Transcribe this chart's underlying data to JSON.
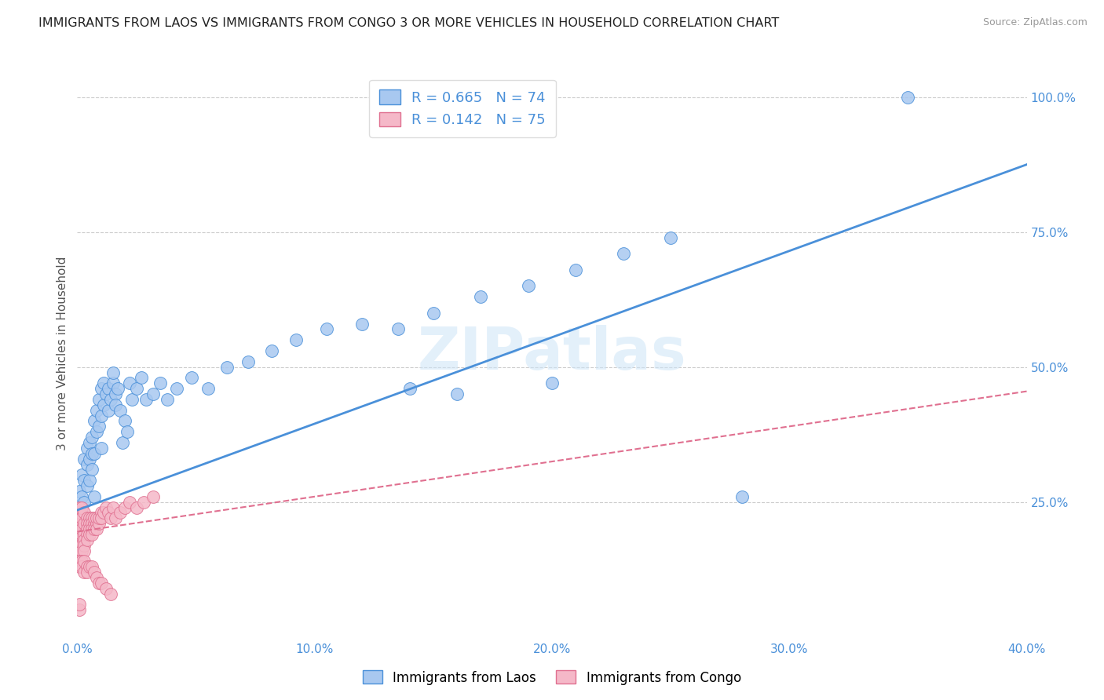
{
  "title": "IMMIGRANTS FROM LAOS VS IMMIGRANTS FROM CONGO 3 OR MORE VEHICLES IN HOUSEHOLD CORRELATION CHART",
  "source": "Source: ZipAtlas.com",
  "ylabel": "3 or more Vehicles in Household",
  "xlim": [
    0.0,
    0.4
  ],
  "ylim": [
    0.0,
    1.05
  ],
  "xtick_labels": [
    "0.0%",
    "10.0%",
    "20.0%",
    "30.0%",
    "40.0%"
  ],
  "xtick_vals": [
    0.0,
    0.1,
    0.2,
    0.3,
    0.4
  ],
  "ytick_labels": [
    "25.0%",
    "50.0%",
    "75.0%",
    "100.0%"
  ],
  "ytick_vals": [
    0.25,
    0.5,
    0.75,
    1.0
  ],
  "watermark": "ZIPatlas",
  "laos_color": "#a8c8f0",
  "laos_edge_color": "#4a90d9",
  "congo_color": "#f5b8c8",
  "congo_edge_color": "#e07090",
  "laos_line_color": "#4a90d9",
  "congo_line_color": "#e07090",
  "laos_R": 0.665,
  "laos_N": 74,
  "congo_R": 0.142,
  "congo_N": 75,
  "laos_x": [
    0.001,
    0.001,
    0.002,
    0.002,
    0.002,
    0.003,
    0.003,
    0.003,
    0.004,
    0.004,
    0.004,
    0.005,
    0.005,
    0.005,
    0.006,
    0.006,
    0.006,
    0.007,
    0.007,
    0.007,
    0.008,
    0.008,
    0.009,
    0.009,
    0.01,
    0.01,
    0.01,
    0.011,
    0.011,
    0.012,
    0.013,
    0.013,
    0.014,
    0.015,
    0.015,
    0.016,
    0.016,
    0.017,
    0.018,
    0.019,
    0.02,
    0.021,
    0.022,
    0.023,
    0.025,
    0.027,
    0.029,
    0.032,
    0.035,
    0.038,
    0.042,
    0.048,
    0.055,
    0.063,
    0.072,
    0.082,
    0.092,
    0.105,
    0.12,
    0.135,
    0.15,
    0.17,
    0.19,
    0.21,
    0.23,
    0.25,
    0.001,
    0.002,
    0.003,
    0.14,
    0.16,
    0.2,
    0.35,
    0.28
  ],
  "laos_y": [
    0.27,
    0.23,
    0.3,
    0.26,
    0.24,
    0.33,
    0.29,
    0.25,
    0.35,
    0.28,
    0.32,
    0.36,
    0.29,
    0.33,
    0.37,
    0.31,
    0.34,
    0.4,
    0.26,
    0.34,
    0.42,
    0.38,
    0.44,
    0.39,
    0.46,
    0.35,
    0.41,
    0.47,
    0.43,
    0.45,
    0.42,
    0.46,
    0.44,
    0.47,
    0.49,
    0.45,
    0.43,
    0.46,
    0.42,
    0.36,
    0.4,
    0.38,
    0.47,
    0.44,
    0.46,
    0.48,
    0.44,
    0.45,
    0.47,
    0.44,
    0.46,
    0.48,
    0.46,
    0.5,
    0.51,
    0.53,
    0.55,
    0.57,
    0.58,
    0.57,
    0.6,
    0.63,
    0.65,
    0.68,
    0.71,
    0.74,
    0.19,
    0.2,
    0.21,
    0.46,
    0.45,
    0.47,
    1.0,
    0.26
  ],
  "congo_x": [
    0.0005,
    0.001,
    0.001,
    0.001,
    0.001,
    0.001,
    0.001,
    0.001,
    0.001,
    0.002,
    0.002,
    0.002,
    0.002,
    0.002,
    0.002,
    0.002,
    0.003,
    0.003,
    0.003,
    0.003,
    0.003,
    0.003,
    0.004,
    0.004,
    0.004,
    0.004,
    0.004,
    0.005,
    0.005,
    0.005,
    0.005,
    0.006,
    0.006,
    0.006,
    0.006,
    0.007,
    0.007,
    0.007,
    0.008,
    0.008,
    0.008,
    0.009,
    0.009,
    0.01,
    0.01,
    0.011,
    0.012,
    0.013,
    0.014,
    0.015,
    0.016,
    0.018,
    0.02,
    0.022,
    0.025,
    0.028,
    0.032,
    0.001,
    0.001,
    0.002,
    0.002,
    0.003,
    0.003,
    0.004,
    0.004,
    0.005,
    0.006,
    0.007,
    0.008,
    0.009,
    0.01,
    0.012,
    0.014,
    0.001,
    0.001
  ],
  "congo_y": [
    0.21,
    0.22,
    0.2,
    0.19,
    0.18,
    0.17,
    0.16,
    0.23,
    0.24,
    0.21,
    0.19,
    0.17,
    0.16,
    0.22,
    0.24,
    0.2,
    0.21,
    0.19,
    0.18,
    0.17,
    0.16,
    0.23,
    0.22,
    0.21,
    0.2,
    0.19,
    0.18,
    0.22,
    0.21,
    0.2,
    0.19,
    0.22,
    0.21,
    0.2,
    0.19,
    0.21,
    0.2,
    0.22,
    0.21,
    0.22,
    0.2,
    0.21,
    0.22,
    0.23,
    0.22,
    0.23,
    0.24,
    0.23,
    0.22,
    0.24,
    0.22,
    0.23,
    0.24,
    0.25,
    0.24,
    0.25,
    0.26,
    0.14,
    0.13,
    0.14,
    0.13,
    0.12,
    0.14,
    0.13,
    0.12,
    0.13,
    0.13,
    0.12,
    0.11,
    0.1,
    0.1,
    0.09,
    0.08,
    0.05,
    0.06
  ]
}
